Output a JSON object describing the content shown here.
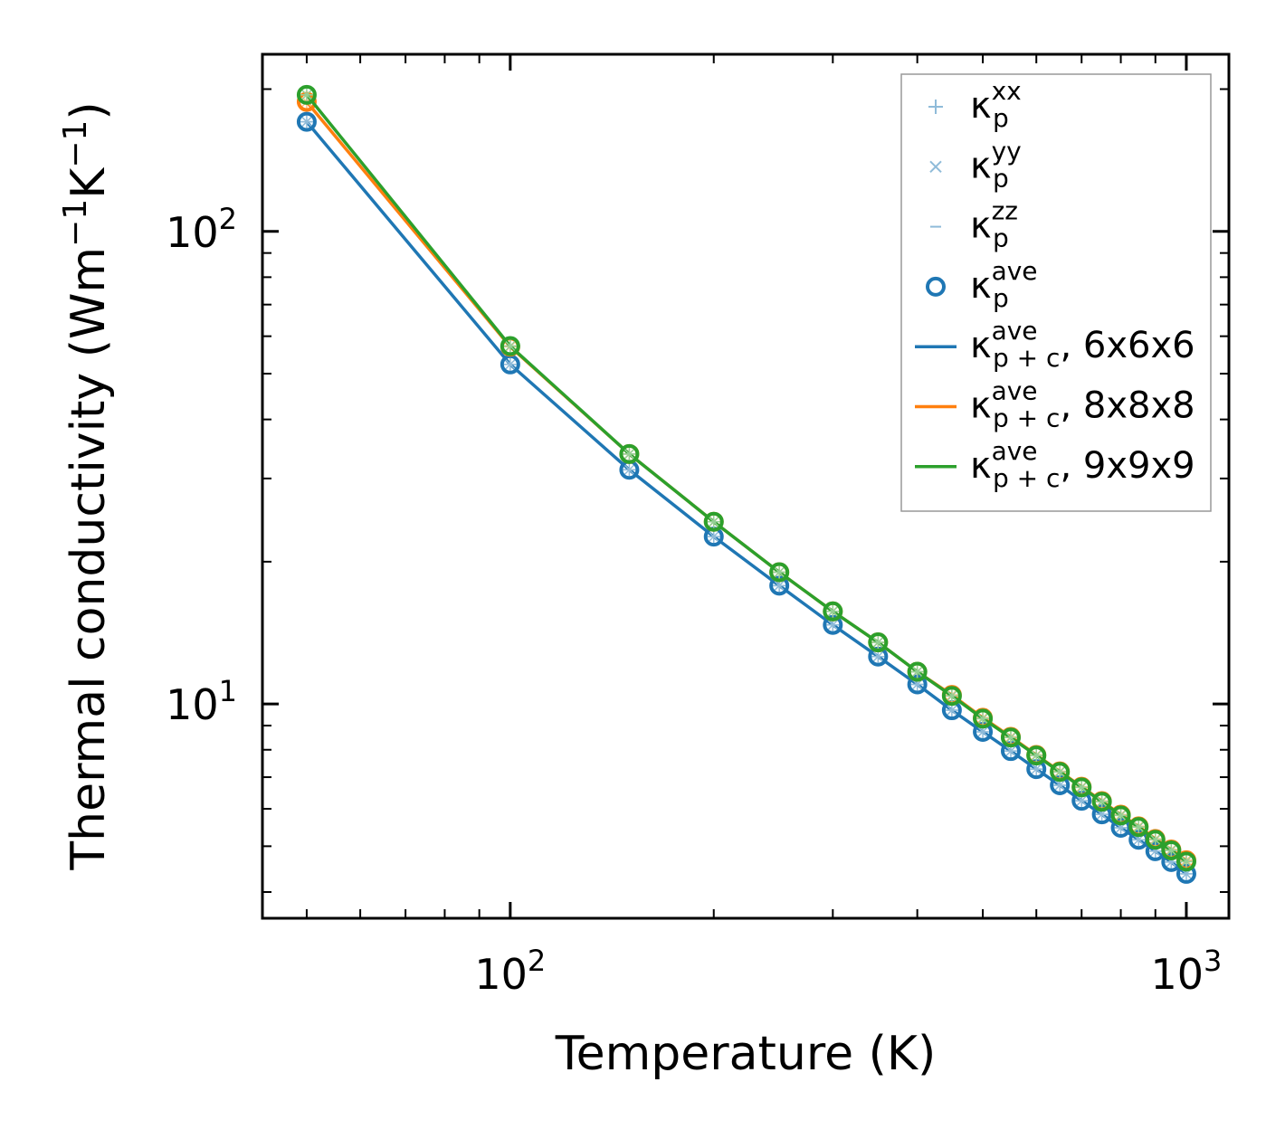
{
  "chart_data": {
    "type": "line",
    "xscale": "log",
    "yscale": "log",
    "xlabel": "Temperature (K)",
    "ylabel": {
      "main": "Thermal conductivity (Wm",
      "sup1": "−1",
      "mid": "K",
      "sup2": "−1",
      "end": ")"
    },
    "xlim": [
      43,
      1156
    ],
    "ylim": [
      3.52,
      237
    ],
    "x_ticks": [
      {
        "value": 100,
        "base": "10",
        "exp": "2"
      },
      {
        "value": 1000,
        "base": "10",
        "exp": "3"
      }
    ],
    "y_ticks": [
      {
        "value": 10,
        "base": "10",
        "exp": "1"
      },
      {
        "value": 100,
        "base": "10",
        "exp": "2"
      }
    ],
    "x": [
      50,
      100,
      150,
      200,
      250,
      300,
      350,
      400,
      450,
      500,
      550,
      600,
      650,
      700,
      750,
      800,
      850,
      900,
      950,
      1000
    ],
    "series": [
      {
        "name": "6x6x6",
        "color": "#1f77b4",
        "light": "#8fbbd9",
        "values": [
          170.6,
          52.3,
          31.3,
          22.6,
          17.8,
          14.7,
          12.6,
          11.0,
          9.7,
          8.73,
          7.95,
          7.28,
          6.73,
          6.24,
          5.84,
          5.47,
          5.16,
          4.88,
          4.63,
          4.37
        ]
      },
      {
        "name": "8x8x8",
        "color": "#ff7f0e",
        "light": "#ffbf86",
        "values": [
          188,
          57.0,
          33.8,
          24.3,
          19.0,
          15.7,
          13.5,
          11.7,
          10.45,
          9.35,
          8.52,
          7.8,
          7.2,
          6.68,
          6.23,
          5.83,
          5.51,
          5.18,
          4.92,
          4.67
        ]
      },
      {
        "name": "9x9x9",
        "color": "#2ca02c",
        "light": "#95cf95",
        "values": [
          194.5,
          57.2,
          33.8,
          24.3,
          19.0,
          15.7,
          13.5,
          11.7,
          10.4,
          9.31,
          8.49,
          7.78,
          7.18,
          6.66,
          6.21,
          5.81,
          5.49,
          5.16,
          4.9,
          4.64
        ]
      }
    ],
    "legend": {
      "placement": "top-right",
      "entries": [
        {
          "marker": "plus",
          "base": "κ",
          "sub": "p",
          "sup": "xx",
          "suffix": "",
          "color": "#8fbbd9"
        },
        {
          "marker": "x",
          "base": "κ",
          "sub": "p",
          "sup": "yy",
          "suffix": "",
          "color": "#8fbbd9"
        },
        {
          "marker": "hline",
          "base": "κ",
          "sub": "p",
          "sup": "zz",
          "suffix": "",
          "color": "#8fbbd9"
        },
        {
          "marker": "circle",
          "base": "κ",
          "sub": "p",
          "sup": "ave",
          "suffix": "",
          "color": "#1f77b4"
        },
        {
          "marker": "line",
          "base": "κ",
          "sub": "p + c",
          "sup": "ave",
          "suffix": ", 6x6x6",
          "color": "#1f77b4"
        },
        {
          "marker": "line",
          "base": "κ",
          "sub": "p + c",
          "sup": "ave",
          "suffix": ", 8x8x8",
          "color": "#ff7f0e"
        },
        {
          "marker": "line",
          "base": "κ",
          "sub": "p + c",
          "sup": "ave",
          "suffix": ", 9x9x9",
          "color": "#2ca02c"
        }
      ]
    }
  }
}
